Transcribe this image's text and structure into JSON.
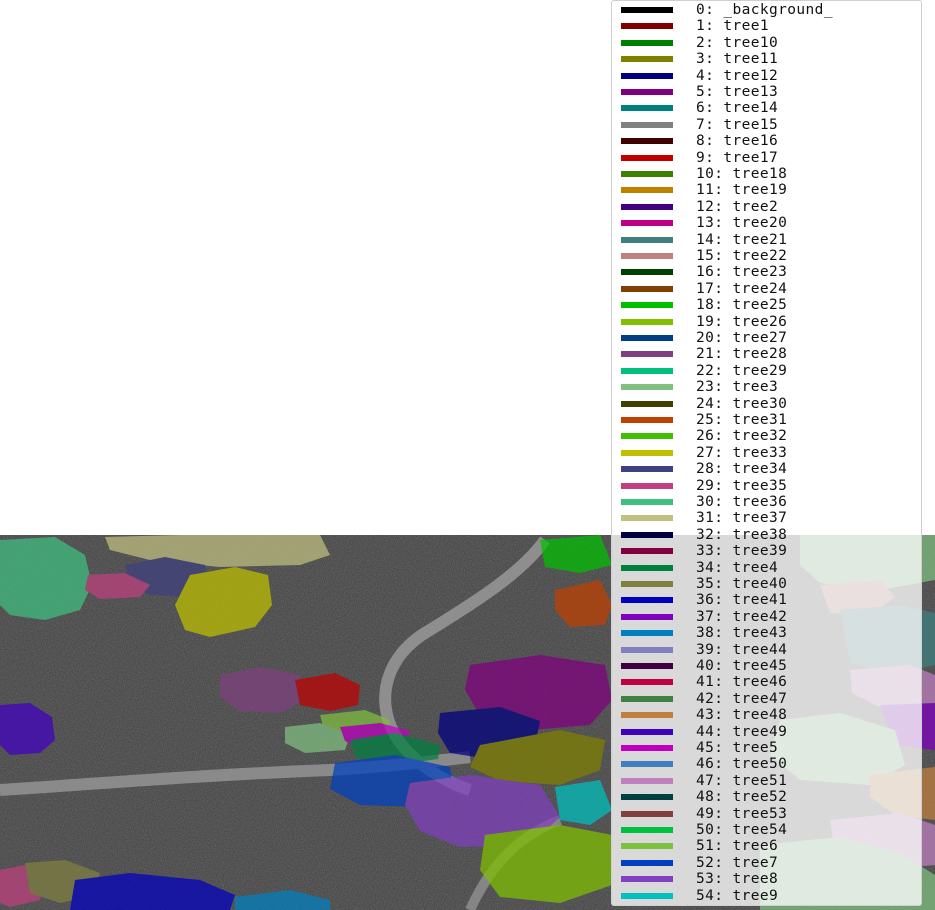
{
  "legend": {
    "items": [
      {
        "label": "0: _background_",
        "color": "#000000"
      },
      {
        "label": "1: tree1",
        "color": "#800000"
      },
      {
        "label": "2: tree10",
        "color": "#008000"
      },
      {
        "label": "3: tree11",
        "color": "#808000"
      },
      {
        "label": "4: tree12",
        "color": "#000080"
      },
      {
        "label": "5: tree13",
        "color": "#800080"
      },
      {
        "label": "6: tree14",
        "color": "#008080"
      },
      {
        "label": "7: tree15",
        "color": "#808080"
      },
      {
        "label": "8: tree16",
        "color": "#400000"
      },
      {
        "label": "9: tree17",
        "color": "#c00000"
      },
      {
        "label": "10: tree18",
        "color": "#408000"
      },
      {
        "label": "11: tree19",
        "color": "#c08000"
      },
      {
        "label": "12: tree2",
        "color": "#400080"
      },
      {
        "label": "13: tree20",
        "color": "#c00080"
      },
      {
        "label": "14: tree21",
        "color": "#408080"
      },
      {
        "label": "15: tree22",
        "color": "#c08080"
      },
      {
        "label": "16: tree23",
        "color": "#004000"
      },
      {
        "label": "17: tree24",
        "color": "#804000"
      },
      {
        "label": "18: tree25",
        "color": "#00c000"
      },
      {
        "label": "19: tree26",
        "color": "#80c000"
      },
      {
        "label": "20: tree27",
        "color": "#004080"
      },
      {
        "label": "21: tree28",
        "color": "#804080"
      },
      {
        "label": "22: tree29",
        "color": "#00c080"
      },
      {
        "label": "23: tree3",
        "color": "#80c080"
      },
      {
        "label": "24: tree30",
        "color": "#404000"
      },
      {
        "label": "25: tree31",
        "color": "#c04000"
      },
      {
        "label": "26: tree32",
        "color": "#40c000"
      },
      {
        "label": "27: tree33",
        "color": "#c0c000"
      },
      {
        "label": "28: tree34",
        "color": "#404080"
      },
      {
        "label": "29: tree35",
        "color": "#c04080"
      },
      {
        "label": "30: tree36",
        "color": "#40c080"
      },
      {
        "label": "31: tree37",
        "color": "#c0c080"
      },
      {
        "label": "32: tree38",
        "color": "#000040"
      },
      {
        "label": "33: tree39",
        "color": "#800040"
      },
      {
        "label": "34: tree4",
        "color": "#008040"
      },
      {
        "label": "35: tree40",
        "color": "#808040"
      },
      {
        "label": "36: tree41",
        "color": "#0000c0"
      },
      {
        "label": "37: tree42",
        "color": "#8000c0"
      },
      {
        "label": "38: tree43",
        "color": "#0080c0"
      },
      {
        "label": "39: tree44",
        "color": "#8080c0"
      },
      {
        "label": "40: tree45",
        "color": "#400040"
      },
      {
        "label": "41: tree46",
        "color": "#c00040"
      },
      {
        "label": "42: tree47",
        "color": "#408040"
      },
      {
        "label": "43: tree48",
        "color": "#c08040"
      },
      {
        "label": "44: tree49",
        "color": "#4000c0"
      },
      {
        "label": "45: tree5",
        "color": "#c000c0"
      },
      {
        "label": "46: tree50",
        "color": "#4080c0"
      },
      {
        "label": "47: tree51",
        "color": "#c080c0"
      },
      {
        "label": "48: tree52",
        "color": "#004040"
      },
      {
        "label": "49: tree53",
        "color": "#804040"
      },
      {
        "label": "50: tree54",
        "color": "#00c040"
      },
      {
        "label": "51: tree6",
        "color": "#80c040"
      },
      {
        "label": "52: tree7",
        "color": "#0040c0"
      },
      {
        "label": "53: tree8",
        "color": "#8040c0"
      },
      {
        "label": "54: tree9",
        "color": "#00c0c0"
      }
    ]
  }
}
